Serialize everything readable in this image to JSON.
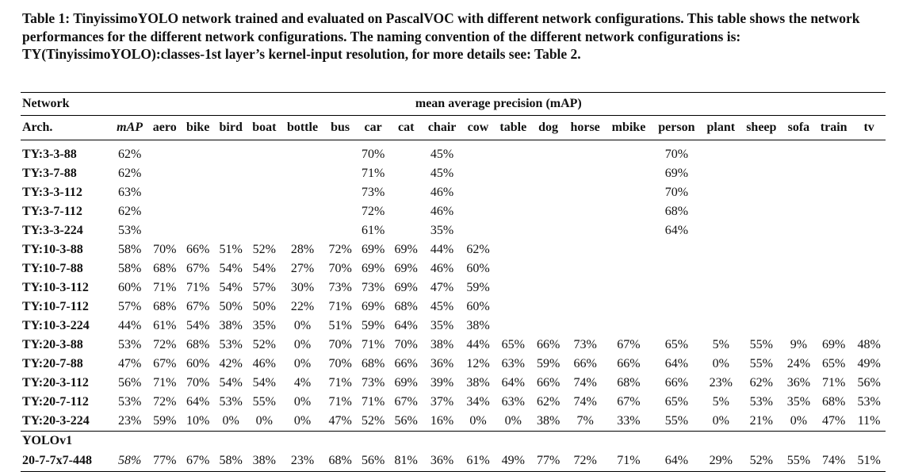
{
  "caption": "Table 1: TinyissimoYOLO network trained and evaluated on PascalVOC with different network configurations. This table shows the network performances for the different network configurations. The naming convention of the different network configurations is: TY(TinyissimoYOLO):classes-1st layer’s kernel-input resolution, for more details see: Table 2.",
  "table": {
    "header": {
      "network": "Network",
      "group_title": "mean average precision (mAP)",
      "arch": "Arch."
    },
    "columns": [
      "mAP",
      "aero",
      "bike",
      "bird",
      "boat",
      "bottle",
      "bus",
      "car",
      "cat",
      "chair",
      "cow",
      "table",
      "dog",
      "horse",
      "mbike",
      "person",
      "plant",
      "sheep",
      "sofa",
      "train",
      "tv"
    ],
    "rows": [
      {
        "name": "TY:3-3-88",
        "cells": [
          "62%",
          null,
          null,
          null,
          null,
          null,
          null,
          "70%",
          null,
          "45%",
          null,
          null,
          null,
          null,
          null,
          "70%",
          null,
          null,
          null,
          null,
          null
        ]
      },
      {
        "name": "TY:3-7-88",
        "cells": [
          "62%",
          null,
          null,
          null,
          null,
          null,
          null,
          "71%",
          null,
          "45%",
          null,
          null,
          null,
          null,
          null,
          "69%",
          null,
          null,
          null,
          null,
          null
        ]
      },
      {
        "name": "TY:3-3-112",
        "cells": [
          "63%",
          null,
          null,
          null,
          null,
          null,
          null,
          "73%",
          null,
          "46%",
          null,
          null,
          null,
          null,
          null,
          "70%",
          null,
          null,
          null,
          null,
          null
        ]
      },
      {
        "name": "TY:3-7-112",
        "cells": [
          "62%",
          null,
          null,
          null,
          null,
          null,
          null,
          "72%",
          null,
          "46%",
          null,
          null,
          null,
          null,
          null,
          "68%",
          null,
          null,
          null,
          null,
          null
        ]
      },
      {
        "name": "TY:3-3-224",
        "cells": [
          "53%",
          null,
          null,
          null,
          null,
          null,
          null,
          "61%",
          null,
          "35%",
          null,
          null,
          null,
          null,
          null,
          "64%",
          null,
          null,
          null,
          null,
          null
        ]
      },
      {
        "name": "TY:10-3-88",
        "cells": [
          "58%",
          "70%",
          "66%",
          "51%",
          "52%",
          "28%",
          "72%",
          "69%",
          "69%",
          "44%",
          "62%",
          null,
          null,
          null,
          null,
          null,
          null,
          null,
          null,
          null,
          null
        ]
      },
      {
        "name": "TY:10-7-88",
        "cells": [
          "58%",
          "68%",
          "67%",
          "54%",
          "54%",
          "27%",
          "70%",
          "69%",
          "69%",
          "46%",
          "60%",
          null,
          null,
          null,
          null,
          null,
          null,
          null,
          null,
          null,
          null
        ]
      },
      {
        "name": "TY:10-3-112",
        "cells": [
          "60%",
          "71%",
          "71%",
          "54%",
          "57%",
          "30%",
          "73%",
          "73%",
          "69%",
          "47%",
          "59%",
          null,
          null,
          null,
          null,
          null,
          null,
          null,
          null,
          null,
          null
        ]
      },
      {
        "name": "TY:10-7-112",
        "cells": [
          "57%",
          "68%",
          "67%",
          "50%",
          "50%",
          "22%",
          "71%",
          "69%",
          "68%",
          "45%",
          "60%",
          null,
          null,
          null,
          null,
          null,
          null,
          null,
          null,
          null,
          null
        ]
      },
      {
        "name": "TY:10-3-224",
        "cells": [
          "44%",
          "61%",
          "54%",
          "38%",
          "35%",
          "0%",
          "51%",
          "59%",
          "64%",
          "35%",
          "38%",
          null,
          null,
          null,
          null,
          null,
          null,
          null,
          null,
          null,
          null
        ]
      },
      {
        "name": "TY:20-3-88",
        "cells": [
          "53%",
          "72%",
          "68%",
          "53%",
          "52%",
          "0%",
          "70%",
          "71%",
          "70%",
          "38%",
          "44%",
          "65%",
          "66%",
          "73%",
          "67%",
          "65%",
          "5%",
          "55%",
          "9%",
          "69%",
          "48%"
        ]
      },
      {
        "name": "TY:20-7-88",
        "cells": [
          "47%",
          "67%",
          "60%",
          "42%",
          "46%",
          "0%",
          "70%",
          "68%",
          "66%",
          "36%",
          "12%",
          "63%",
          "59%",
          "66%",
          "66%",
          "64%",
          "0%",
          "55%",
          "24%",
          "65%",
          "49%"
        ]
      },
      {
        "name": "TY:20-3-112",
        "cells": [
          "56%",
          "71%",
          "70%",
          "54%",
          "54%",
          "4%",
          "71%",
          "73%",
          "69%",
          "39%",
          "38%",
          "64%",
          "66%",
          "74%",
          "68%",
          "66%",
          "23%",
          "62%",
          "36%",
          "71%",
          "56%"
        ]
      },
      {
        "name": "TY:20-7-112",
        "cells": [
          "53%",
          "72%",
          "64%",
          "53%",
          "55%",
          "0%",
          "71%",
          "71%",
          "67%",
          "37%",
          "34%",
          "63%",
          "62%",
          "74%",
          "67%",
          "65%",
          "5%",
          "53%",
          "35%",
          "68%",
          "53%"
        ]
      },
      {
        "name": "TY:20-3-224",
        "cells": [
          "23%",
          "59%",
          "10%",
          "0%",
          "0%",
          "0%",
          "47%",
          "52%",
          "56%",
          "16%",
          "0%",
          "0%",
          "38%",
          "7%",
          "33%",
          "55%",
          "0%",
          "21%",
          "0%",
          "47%",
          "11%"
        ]
      }
    ],
    "yolo_label": "YOLOv1",
    "yolo_row": {
      "name": "20-7-7x7-448",
      "cells": [
        "58%",
        "77%",
        "67%",
        "58%",
        "38%",
        "23%",
        "68%",
        "56%",
        "81%",
        "36%",
        "61%",
        "49%",
        "77%",
        "72%",
        "71%",
        "64%",
        "29%",
        "52%",
        "55%",
        "74%",
        "51%"
      ]
    }
  }
}
